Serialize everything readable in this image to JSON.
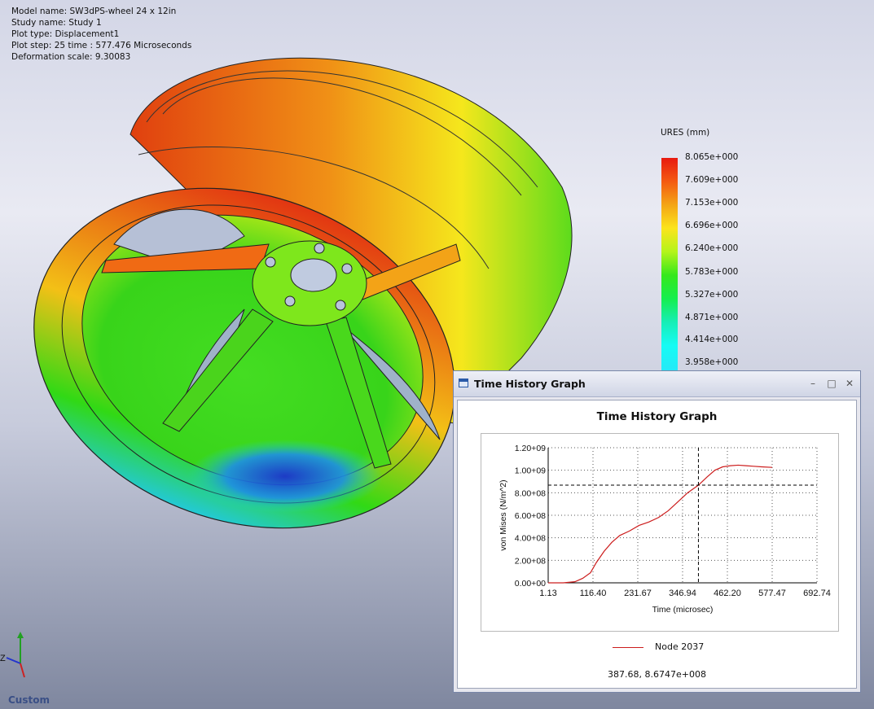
{
  "model_info": {
    "model_name": "Model name: SW3dPS-wheel 24 x 12in",
    "study_name": "Study name: Study 1",
    "plot_type": "Plot type:  Displacement1",
    "plot_step": "Plot step: 25   time : 577.476 Microseconds",
    "deformation_scale": "Deformation scale: 9.30083"
  },
  "color_legend": {
    "title": "URES (mm)",
    "labels": [
      "8.065e+000",
      "7.609e+000",
      "7.153e+000",
      "6.696e+000",
      "6.240e+000",
      "5.783e+000",
      "5.327e+000",
      "4.871e+000",
      "4.414e+000",
      "3.958e+000"
    ]
  },
  "view_orientation": "Custom",
  "triad_labels": {
    "z": "Z"
  },
  "window": {
    "title": "Time History Graph",
    "minimize_icon": "minimize-icon",
    "restore_icon": "restore-icon",
    "close_icon": "close-icon"
  },
  "graph": {
    "title": "Time History Graph",
    "legend_label": "Node 2037",
    "readout": "387.68, 8.6747e+008"
  },
  "chart_data": {
    "type": "line",
    "title": "Time History Graph",
    "xlabel": "Time (microsec)",
    "ylabel": "von Mises (N/m^2)",
    "x_ticks": [
      "1.13",
      "116.40",
      "231.67",
      "346.94",
      "462.20",
      "577.47",
      "692.74"
    ],
    "y_ticks": [
      "0.00+00",
      "2.00+08",
      "4.00+08",
      "6.00+08",
      "8.00+08",
      "1.00+09",
      "1.20+09"
    ],
    "xlim": [
      1.13,
      692.74
    ],
    "ylim": [
      0,
      1200000000
    ],
    "grid": true,
    "legend_position": "bottom",
    "crosshair": {
      "x": 387.68,
      "y": 867470000
    },
    "series": [
      {
        "name": "Node 2037",
        "color": "#cc1d1d",
        "x": [
          1.13,
          40,
          70,
          90,
          110,
          125,
          145,
          165,
          185,
          210,
          235,
          260,
          285,
          310,
          335,
          360,
          387.68,
          410,
          430,
          450,
          470,
          490,
          510,
          530,
          550,
          577.47
        ],
        "y": [
          0,
          0,
          10000000,
          40000000,
          90000000,
          180000000,
          280000000,
          360000000,
          420000000,
          460000000,
          510000000,
          540000000,
          580000000,
          640000000,
          720000000,
          800000000,
          867470000,
          940000000,
          1000000000,
          1030000000,
          1040000000,
          1045000000,
          1040000000,
          1035000000,
          1030000000,
          1025000000
        ]
      }
    ]
  }
}
